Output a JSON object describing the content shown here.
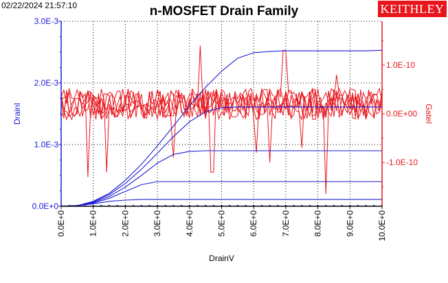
{
  "header": {
    "timestamp": "02/22/2024 21:57:10",
    "title": "n-MOSFET Drain Family",
    "brand": "KEITHLEY"
  },
  "colors": {
    "drain": "#1a1ad6",
    "gate": "#e8161c",
    "brand_bg": "#e8161c",
    "grid": "#000000"
  },
  "chart_data": {
    "type": "line",
    "title": "n-MOSFET Drain Family",
    "xlabel": "DrainV",
    "ylabel": "DrainI",
    "y2label": "GateI",
    "xlim": [
      0,
      10
    ],
    "ylim": [
      0,
      0.003
    ],
    "y2lim": [
      -1.9e-10,
      1.9e-10
    ],
    "xticks": [
      "0.0E+0",
      "1.0E+0",
      "2.0E+0",
      "3.0E+0",
      "4.0E+0",
      "5.0E+0",
      "6.0E+0",
      "7.0E+0",
      "8.0E+0",
      "9.0E+0",
      "10.0E+0"
    ],
    "yticks": [
      {
        "v": 0,
        "label": "0.0E+0"
      },
      {
        "v": 0.001,
        "label": "1.0E-3"
      },
      {
        "v": 0.002,
        "label": "2.0E-3"
      },
      {
        "v": 0.003,
        "label": "3.0E-3"
      }
    ],
    "y2ticks": [
      {
        "v": 1e-10,
        "label": "1.0E-10"
      },
      {
        "v": 0,
        "label": "0.0E+00"
      },
      {
        "v": -1e-10,
        "label": "-1.0E-10"
      }
    ],
    "grid": true,
    "drain_series": [
      {
        "x": [
          0,
          0.5,
          1,
          1.5,
          2,
          2.5,
          3,
          3.5,
          4,
          4.5,
          5,
          5.5,
          6,
          6.5,
          7,
          7.5,
          8,
          8.5,
          9,
          9.5,
          10
        ],
        "y": [
          0,
          0,
          0,
          0,
          0,
          0,
          0,
          0,
          0,
          0,
          0,
          0,
          0,
          0,
          0,
          0,
          0,
          0,
          0,
          0,
          0
        ]
      },
      {
        "x": [
          0,
          0.5,
          1,
          1.5,
          2,
          2.5,
          3,
          3.5,
          4,
          4.5,
          5,
          5.5,
          6,
          6.5,
          7,
          7.5,
          8,
          8.5,
          9,
          9.5,
          10
        ],
        "y": [
          0,
          1e-05,
          4e-05,
          8e-05,
          0.0001,
          0.00011,
          0.00011,
          0.00011,
          0.00011,
          0.00011,
          0.00011,
          0.00011,
          0.00011,
          0.00011,
          0.00011,
          0.00011,
          0.00011,
          0.00011,
          0.00011,
          0.00011,
          0.00011
        ]
      },
      {
        "x": [
          0,
          0.5,
          1,
          1.5,
          2,
          2.5,
          3,
          3.5,
          4,
          4.5,
          5,
          5.5,
          6,
          6.5,
          7,
          7.5,
          8,
          8.5,
          9,
          9.5,
          10
        ],
        "y": [
          0,
          1e-05,
          5e-05,
          0.00013,
          0.00024,
          0.00035,
          0.0004,
          0.0004,
          0.0004,
          0.0004,
          0.0004,
          0.0004,
          0.0004,
          0.0004,
          0.0004,
          0.0004,
          0.0004,
          0.0004,
          0.0004,
          0.0004,
          0.0004
        ]
      },
      {
        "x": [
          0,
          0.5,
          1,
          1.5,
          2,
          2.5,
          3,
          3.5,
          4,
          4.5,
          5,
          5.5,
          6,
          6.5,
          7,
          7.5,
          8,
          8.5,
          9,
          9.5,
          10
        ],
        "y": [
          0,
          1e-05,
          6e-05,
          0.00016,
          0.00031,
          0.0005,
          0.0007,
          0.00084,
          0.00089,
          0.0009,
          0.0009,
          0.0009,
          0.0009,
          0.0009,
          0.0009,
          0.0009,
          0.0009,
          0.0009,
          0.0009,
          0.0009,
          0.0009
        ]
      },
      {
        "x": [
          0,
          0.5,
          1,
          1.5,
          2,
          2.5,
          3,
          3.5,
          4,
          4.5,
          5,
          5.5,
          6,
          6.5,
          7,
          7.5,
          8,
          8.5,
          9,
          9.5,
          10
        ],
        "y": [
          0,
          1e-05,
          7e-05,
          0.00019,
          0.00037,
          0.0006,
          0.00086,
          0.00113,
          0.00137,
          0.00153,
          0.0016,
          0.00161,
          0.00161,
          0.00161,
          0.00161,
          0.00161,
          0.00161,
          0.00161,
          0.00161,
          0.00161,
          0.00161
        ]
      },
      {
        "x": [
          0,
          0.5,
          1,
          1.5,
          2,
          2.5,
          3,
          3.5,
          4,
          4.5,
          5,
          5.5,
          6,
          6.5,
          7,
          7.5,
          8,
          8.5,
          9,
          9.5,
          10
        ],
        "y": [
          0,
          1e-05,
          8e-05,
          0.00021,
          0.00042,
          0.00068,
          0.00098,
          0.0013,
          0.00163,
          0.00193,
          0.00219,
          0.0024,
          0.00249,
          0.00251,
          0.00252,
          0.00252,
          0.00252,
          0.00252,
          0.00252,
          0.00252,
          0.00253
        ]
      }
    ],
    "gate_noise": {
      "series_count": 6,
      "points_per_series": 121,
      "baseline": 2e-11,
      "amplitude": 3.2e-11,
      "spikes": [
        {
          "x": 0.8,
          "v": -1.3e-10
        },
        {
          "x": 1.4,
          "v": -1.2e-10
        },
        {
          "x": 3.5,
          "v": -9e-11
        },
        {
          "x": 4.35,
          "v": 1.4e-10
        },
        {
          "x": 4.7,
          "v": -1.2e-10
        },
        {
          "x": 6.1,
          "v": -8e-11
        },
        {
          "x": 6.5,
          "v": -1e-10
        },
        {
          "x": 6.95,
          "v": 1.3e-10
        },
        {
          "x": 7.5,
          "v": -7e-11
        },
        {
          "x": 8.25,
          "v": -1.65e-10
        },
        {
          "x": 8.6,
          "v": 8e-11
        }
      ]
    }
  }
}
